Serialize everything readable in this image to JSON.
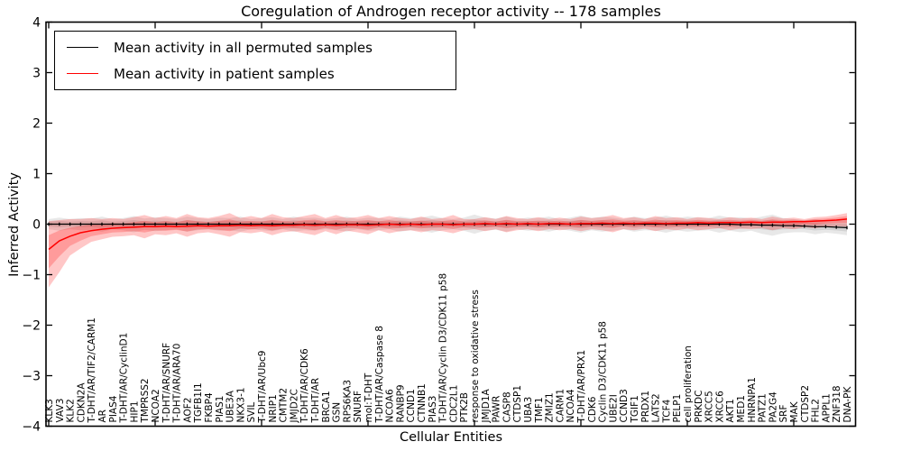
{
  "title": "Coregulation of Androgen receptor activity -- 178 samples",
  "axes": {
    "xlabel": "Cellular Entities",
    "ylabel": "Inferred Activity",
    "ylim": [
      -4,
      4
    ],
    "yticks": [
      -4,
      -3,
      -2,
      -1,
      0,
      1,
      2,
      3,
      4
    ]
  },
  "legend": {
    "entries": [
      {
        "label": "Mean activity in all permuted samples",
        "color": "#000000"
      },
      {
        "label": "Mean activity in patient samples",
        "color": "#ff0000"
      }
    ],
    "position": "upper left"
  },
  "colors": {
    "permuted_line": "#000000",
    "patient_line": "#ff0000",
    "permuted_band": "rgba(0,0,0,0.09)",
    "patient_band": "rgba(255,0,0,0.22)"
  },
  "chart_data": {
    "type": "line",
    "title": "Coregulation of Androgen receptor activity -- 178 samples",
    "xlabel": "Cellular Entities",
    "ylabel": "Inferred Activity",
    "ylim": [
      -4,
      4
    ],
    "yticks": [
      -4,
      -3,
      -2,
      -1,
      0,
      1,
      2,
      3,
      4
    ],
    "grid": false,
    "legend_position": "upper left",
    "band_inner_scale": 0.5,
    "categories": [
      "KLK3",
      "VAV3",
      "KLK2",
      "CDKN2A",
      "T-DHT/AR/TIF2/CARM1",
      "AR",
      "PIAS4",
      "T-DHT/AR/CyclinD1",
      "HIP1",
      "TMPRSS2",
      "NCOA2",
      "T-DHT/AR/SNURF",
      "T-DHT/AR/ARA70",
      "AOF2",
      "TGFB1I1",
      "FKBP4",
      "PIAS1",
      "UBE3A",
      "NKX3-1",
      "SVIL",
      "T-DHT/AR/Ubc9",
      "NRIP1",
      "CMTM2",
      "JMJD2C",
      "T-DHT/AR/CDK6",
      "T-DHT/AR",
      "BRCA1",
      "GSN",
      "RPS6KA3",
      "SNURF",
      "mol:T-DHT",
      "T-DHT/AR/Caspase 8",
      "NCOA6",
      "RANBP9",
      "CCND1",
      "CTNNB1",
      "PIAS3",
      "T-DHT/AR/Cyclin D3/CDK11 p58",
      "CDC2L1",
      "PTK2B",
      "response to oxidative stress",
      "JMJD1A",
      "PAWR",
      "CASP8",
      "CTDSP1",
      "UBA3",
      "TMF1",
      "ZMIZ1",
      "CARM1",
      "NCOA4",
      "T-DHT/AR/PRX1",
      "CDK6",
      "Cyclin D3/CDK11 p58",
      "UBE2I",
      "CCND3",
      "TGIF1",
      "PRDX1",
      "LATS2",
      "TCF4",
      "PELP1",
      "cell proliferation",
      "PRKDC",
      "XRCC5",
      "XRCC6",
      "AKT1",
      "MED1",
      "HNRNPA1",
      "PATZ1",
      "PA2G4",
      "SRF",
      "MAK",
      "CTDSP2",
      "FHL2",
      "APPL1",
      "ZNF318",
      "DNA-PK"
    ],
    "series": [
      {
        "name": "Mean activity in all permuted samples",
        "color": "#000000",
        "values": [
          0,
          0,
          0,
          0,
          0,
          0,
          0,
          0,
          0,
          0,
          0,
          0,
          0,
          0,
          0,
          0,
          0,
          0,
          0,
          0,
          0,
          0,
          0,
          0,
          0,
          0,
          0,
          0,
          0,
          0,
          0,
          0,
          0,
          0,
          0,
          0,
          0,
          0,
          0,
          0,
          0,
          0,
          0,
          0,
          0,
          0,
          0,
          0,
          0,
          0,
          0,
          0,
          0,
          0,
          0,
          0,
          0,
          0,
          0,
          0,
          0,
          0,
          0,
          0,
          0,
          -0.01,
          -0.01,
          -0.02,
          -0.02,
          -0.03,
          -0.03,
          -0.04,
          -0.05,
          -0.05,
          -0.06,
          -0.07
        ],
        "band_halfwidth": [
          0.1,
          0.13,
          0.1,
          0.12,
          0.11,
          0.15,
          0.1,
          0.12,
          0.16,
          0.11,
          0.14,
          0.12,
          0.1,
          0.15,
          0.12,
          0.1,
          0.13,
          0.12,
          0.15,
          0.1,
          0.12,
          0.14,
          0.1,
          0.15,
          0.12,
          0.13,
          0.1,
          0.12,
          0.15,
          0.1,
          0.13,
          0.12,
          0.1,
          0.15,
          0.12,
          0.13,
          0.17,
          0.12,
          0.1,
          0.13,
          0.19,
          0.13,
          0.11,
          0.15,
          0.1,
          0.13,
          0.12,
          0.15,
          0.1,
          0.13,
          0.17,
          0.12,
          0.15,
          0.13,
          0.1,
          0.15,
          0.12,
          0.13,
          0.17,
          0.12,
          0.15,
          0.13,
          0.12,
          0.17,
          0.13,
          0.15,
          0.12,
          0.17,
          0.21,
          0.15,
          0.13,
          0.12,
          0.15,
          0.12,
          0.13,
          0.15
        ]
      },
      {
        "name": "Mean activity in patient samples",
        "color": "#ff0000",
        "values": [
          -0.5,
          -0.33,
          -0.24,
          -0.17,
          -0.13,
          -0.1,
          -0.08,
          -0.07,
          -0.06,
          -0.05,
          -0.05,
          -0.04,
          -0.05,
          -0.04,
          -0.03,
          -0.04,
          -0.03,
          -0.03,
          -0.02,
          -0.03,
          -0.02,
          -0.03,
          -0.02,
          -0.02,
          -0.01,
          -0.02,
          -0.01,
          -0.02,
          -0.01,
          -0.01,
          -0.02,
          -0.01,
          0,
          -0.01,
          0,
          -0.01,
          0,
          0,
          -0.01,
          0,
          0,
          0.01,
          0,
          0.01,
          0,
          0.01,
          0,
          0.01,
          0.01,
          0,
          0.01,
          0.01,
          0.02,
          0.01,
          0.02,
          0.01,
          0.02,
          0.02,
          0.01,
          0.02,
          0.02,
          0.03,
          0.02,
          0.03,
          0.03,
          0.03,
          0.04,
          0.03,
          0.04,
          0.04,
          0.05,
          0.05,
          0.06,
          0.07,
          0.08,
          0.1
        ],
        "band_lower": [
          -1.25,
          -0.95,
          -0.62,
          -0.48,
          -0.35,
          -0.3,
          -0.25,
          -0.24,
          -0.22,
          -0.28,
          -0.2,
          -0.22,
          -0.18,
          -0.25,
          -0.18,
          -0.16,
          -0.2,
          -0.25,
          -0.16,
          -0.18,
          -0.15,
          -0.22,
          -0.16,
          -0.14,
          -0.18,
          -0.22,
          -0.14,
          -0.2,
          -0.13,
          -0.16,
          -0.2,
          -0.12,
          -0.18,
          -0.14,
          -0.12,
          -0.16,
          -0.12,
          -0.14,
          -0.18,
          -0.12,
          -0.1,
          -0.14,
          -0.1,
          -0.16,
          -0.12,
          -0.1,
          -0.14,
          -0.1,
          -0.12,
          -0.1,
          -0.14,
          -0.1,
          -0.12,
          -0.16,
          -0.1,
          -0.12,
          -0.09,
          -0.14,
          -0.1,
          -0.12,
          -0.09,
          -0.12,
          -0.1,
          -0.08,
          -0.12,
          -0.09,
          -0.1,
          -0.08,
          -0.12,
          -0.08,
          -0.1,
          -0.06,
          -0.08,
          -0.05,
          -0.04,
          -0.05
        ],
        "band_upper": [
          0.06,
          0.08,
          0.1,
          0.1,
          0.12,
          0.1,
          0.12,
          0.1,
          0.14,
          0.18,
          0.12,
          0.16,
          0.12,
          0.2,
          0.14,
          0.12,
          0.16,
          0.22,
          0.12,
          0.16,
          0.12,
          0.2,
          0.14,
          0.12,
          0.16,
          0.2,
          0.12,
          0.18,
          0.12,
          0.14,
          0.18,
          0.12,
          0.16,
          0.12,
          0.1,
          0.15,
          0.1,
          0.12,
          0.18,
          0.1,
          0.1,
          0.14,
          0.1,
          0.16,
          0.12,
          0.1,
          0.14,
          0.1,
          0.13,
          0.1,
          0.15,
          0.12,
          0.14,
          0.18,
          0.12,
          0.14,
          0.1,
          0.16,
          0.12,
          0.14,
          0.1,
          0.14,
          0.12,
          0.1,
          0.14,
          0.11,
          0.13,
          0.1,
          0.15,
          0.11,
          0.13,
          0.1,
          0.14,
          0.15,
          0.18,
          0.22
        ]
      }
    ]
  }
}
